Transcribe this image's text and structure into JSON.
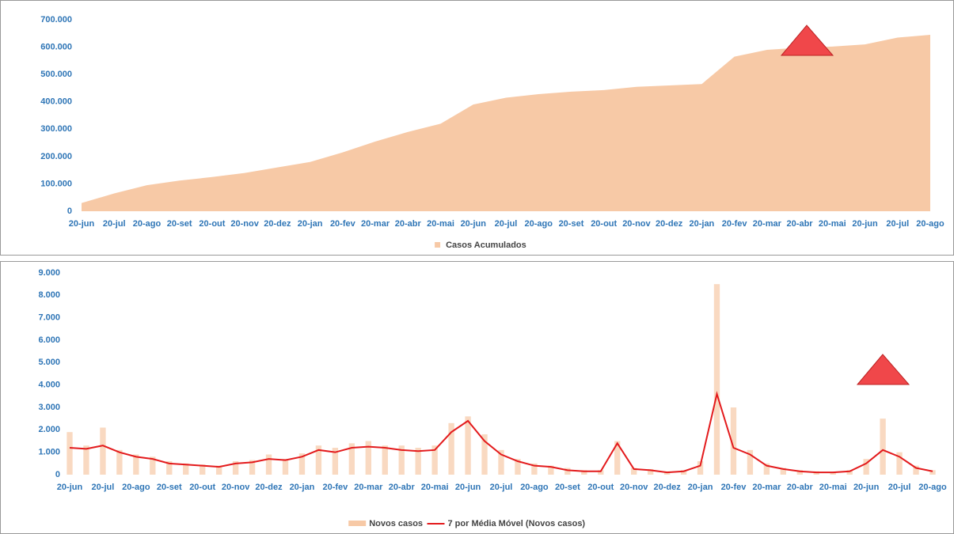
{
  "chart_data": [
    {
      "type": "area",
      "categories": [
        "20-jun",
        "20-jul",
        "20-ago",
        "20-set",
        "20-out",
        "20-nov",
        "20-dez",
        "20-jan",
        "20-fev",
        "20-mar",
        "20-abr",
        "20-mai",
        "20-jun",
        "20-jul",
        "20-ago",
        "20-set",
        "20-out",
        "20-nov",
        "20-dez",
        "20-jan",
        "20-fev",
        "20-mar",
        "20-abr",
        "20-mai",
        "20-jun",
        "20-jul",
        "20-ago"
      ],
      "series": [
        {
          "name": "Casos Acumulados",
          "color": "#f7c9a6",
          "values": [
            30000,
            65000,
            95000,
            112000,
            125000,
            140000,
            160000,
            180000,
            215000,
            255000,
            290000,
            320000,
            390000,
            415000,
            428000,
            437000,
            443000,
            455000,
            460000,
            465000,
            565000,
            590000,
            598000,
            602000,
            610000,
            635000,
            645000
          ]
        }
      ],
      "ylim": [
        0,
        700000
      ],
      "yticks": [
        0,
        {
          "value": 100000,
          "label": "100.000"
        },
        {
          "value": 200000,
          "label": "200.000"
        },
        {
          "value": 300000,
          "label": "300.000"
        },
        {
          "value": 400000,
          "label": "400.000"
        },
        {
          "value": 500000,
          "label": "500.000"
        },
        {
          "value": 600000,
          "label": "600.000"
        },
        {
          "value": 700000,
          "label": "700.000"
        }
      ],
      "legend": "bottom"
    },
    {
      "type": "bar",
      "categories": [
        "20-jun",
        null,
        "20-jul",
        null,
        "20-ago",
        null,
        "20-set",
        null,
        "20-out",
        null,
        "20-nov",
        null,
        "20-dez",
        null,
        "20-jan",
        null,
        "20-fev",
        null,
        "20-mar",
        null,
        "20-abr",
        null,
        "20-mai",
        null,
        "20-jun",
        null,
        "20-jul",
        null,
        "20-ago",
        null,
        "20-set",
        null,
        "20-out",
        null,
        "20-nov",
        null,
        "20-dez",
        null,
        "20-jan",
        null,
        "20-fev",
        null,
        "20-mar",
        null,
        "20-abr",
        null,
        "20-mai",
        null,
        "20-jun",
        null,
        "20-jul",
        null,
        "20-ago"
      ],
      "series": [
        {
          "name": "Novos casos",
          "color": "#f7c9a6",
          "values": [
            1900,
            1300,
            2100,
            1100,
            900,
            800,
            600,
            500,
            450,
            400,
            600,
            650,
            900,
            700,
            950,
            1300,
            1200,
            1400,
            1500,
            1300,
            1300,
            1200,
            1300,
            2300,
            2600,
            1800,
            1100,
            700,
            500,
            400,
            300,
            200,
            200,
            1500,
            300,
            250,
            150,
            200,
            600,
            8500,
            3000,
            1100,
            500,
            300,
            200,
            150,
            120,
            200,
            700,
            2500,
            1000,
            400,
            200
          ]
        },
        {
          "name": "7 por Média Móvel (Novos casos)",
          "color": "#e31a1c",
          "type": "line",
          "values": [
            1200,
            1150,
            1300,
            1000,
            800,
            700,
            500,
            450,
            400,
            350,
            500,
            550,
            700,
            650,
            800,
            1100,
            1000,
            1200,
            1250,
            1200,
            1100,
            1050,
            1100,
            1900,
            2400,
            1500,
            900,
            600,
            400,
            350,
            200,
            150,
            150,
            1400,
            250,
            200,
            100,
            150,
            400,
            3600,
            1200,
            900,
            400,
            250,
            150,
            100,
            100,
            150,
            500,
            1100,
            800,
            300,
            150
          ]
        }
      ],
      "ylim": [
        0,
        9000
      ],
      "yticks": [
        0,
        {
          "value": 1000,
          "label": "1.000"
        },
        {
          "value": 2000,
          "label": "2.000"
        },
        {
          "value": 3000,
          "label": "3.000"
        },
        {
          "value": 4000,
          "label": "4.000"
        },
        {
          "value": 5000,
          "label": "5.000"
        },
        {
          "value": 6000,
          "label": "6.000"
        },
        {
          "value": 7000,
          "label": "7.000"
        },
        {
          "value": 8000,
          "label": "8.000"
        },
        {
          "value": 9000,
          "label": "9.000"
        }
      ],
      "legend": "bottom"
    }
  ]
}
